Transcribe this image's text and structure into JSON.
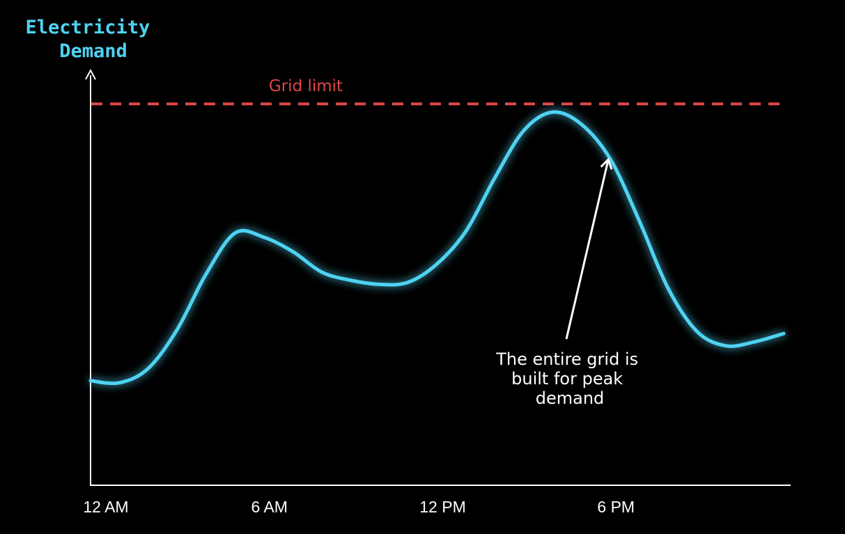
{
  "colors": {
    "background": "#000000",
    "curve": "#4fd2f2",
    "ylabel": "#4fd2f2",
    "grid_limit": "#e04848",
    "axis": "#ffffff",
    "annotation": "#ffffff"
  },
  "chart_data": {
    "type": "line",
    "ylabel_lines": [
      "Electricity",
      "Demand"
    ],
    "x_ticks": [
      {
        "label": "12 AM",
        "x": 0
      },
      {
        "label": "6 AM",
        "x": 6
      },
      {
        "label": "12 PM",
        "x": 12
      },
      {
        "label": "6 PM",
        "x": 18
      }
    ],
    "xlim": [
      0,
      24
    ],
    "ylim": [
      0,
      100
    ],
    "grid": false,
    "series": [
      {
        "values_x": [
          0,
          1,
          2,
          3,
          4,
          5,
          6,
          7,
          8,
          9,
          10,
          11,
          12,
          13,
          14,
          15,
          16,
          17,
          18,
          19,
          20,
          21,
          22,
          23,
          24
        ],
        "values_y": [
          25.5,
          25.0,
          28.5,
          38.0,
          51.5,
          61.5,
          60.5,
          57.0,
          52.0,
          50.0,
          49.0,
          49.5,
          54.0,
          62.0,
          75.0,
          86.5,
          91.0,
          88.0,
          79.5,
          64.5,
          48.0,
          37.5,
          34.0,
          35.0,
          37.0
        ]
      }
    ],
    "reference_line": {
      "label": "Grid limit",
      "y": 93.0
    },
    "annotation": {
      "lines": [
        "The entire grid is",
        "built for peak",
        "demand"
      ],
      "points_to_x": 18.0
    }
  }
}
